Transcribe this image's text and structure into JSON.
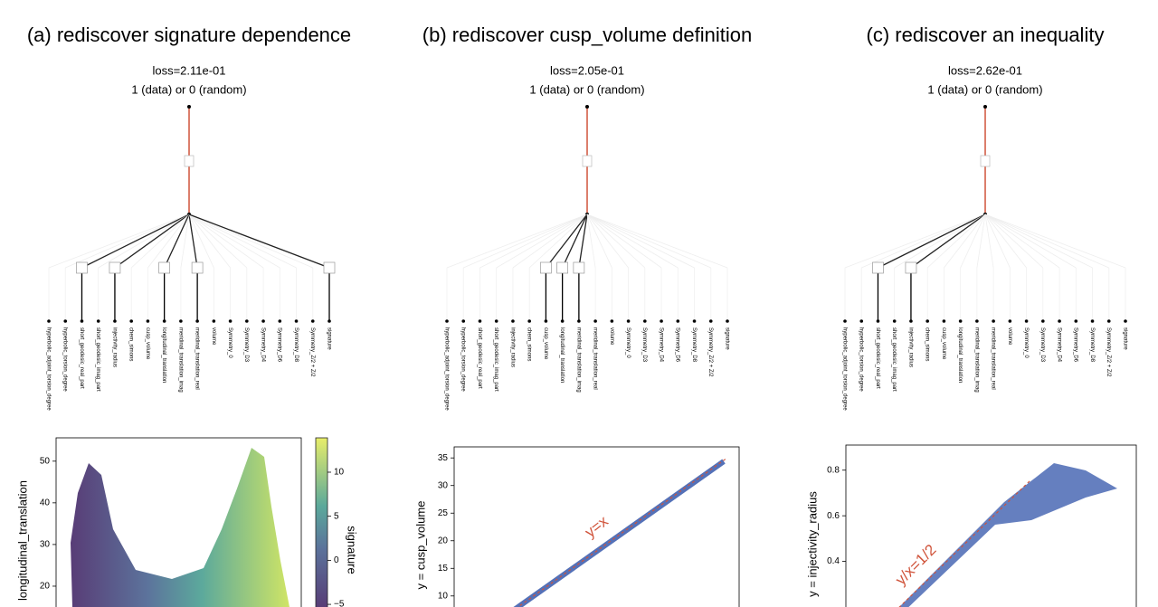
{
  "panels": [
    {
      "title": "(a) rediscover signature dependence",
      "loss": "loss=2.11e-01",
      "output": "1 (data) or 0 (random)",
      "inputs": [
        "hyperbolic_adjoint_torsion_degree",
        "hyperbolic_torsion_degree",
        "short_geodesic_real_part",
        "short_geodesic_imag_part",
        "injectivity_radius",
        "chern_simons",
        "cusp_volume",
        "longitudinal_translation",
        "meridinal_translation_imag",
        "meridinal_translation_real",
        "volume",
        "Symmetry_0",
        "Symmetry_D3",
        "Symmetry_D4",
        "Symmetry_D6",
        "Symmetry_D8",
        "Symmetry_Z/2 + Z/2",
        "signature"
      ],
      "active_inputs": [
        2,
        4,
        7,
        9,
        17
      ],
      "plot": {
        "ylabel": "longitudinal_translation",
        "ylim": [
          15,
          55.6
        ],
        "yticks": [
          20,
          30,
          40,
          50
        ],
        "colorbar": {
          "label": "signature",
          "lim": [
            -5.3,
            13.9
          ],
          "ticks": [
            {
              "value": -5,
              "label": "−5"
            },
            0,
            5,
            10
          ]
        }
      }
    },
    {
      "title": "(b) rediscover cusp_volume definition",
      "loss": "loss=2.05e-01",
      "output": "1 (data) or 0 (random)",
      "inputs": [
        "hyperbolic_adjoint_torsion_degree",
        "hyperbolic_torsion_degree",
        "short_geodesic_real_part",
        "short_geodesic_imag_part",
        "injectivity_radius",
        "chern_simons",
        "cusp_volume",
        "longitudinal_translation",
        "meridinal_translation_imag",
        "meridinal_translation_real",
        "volume",
        "Symmetry_0",
        "Symmetry_D3",
        "Symmetry_D4",
        "Symmetry_D6",
        "Symmetry_D8",
        "Symmetry_Z/2 + Z/2",
        "signature"
      ],
      "active_inputs": [
        6,
        7,
        8
      ],
      "plot": {
        "ylabel": "y = cusp_volume",
        "ylim": [
          8,
          37
        ],
        "yticks": [
          10,
          15,
          20,
          25,
          30,
          35
        ],
        "annotation": "y=x"
      }
    },
    {
      "title": "(c) rediscover an inequality",
      "loss": "loss=2.62e-01",
      "output": "1 (data) or 0 (random)",
      "inputs": [
        "hyperbolic_adjoint_torsion_degree",
        "hyperbolic_torsion_degree",
        "short_geodesic_real_part",
        "short_geodesic_imag_part",
        "injectivity_radius",
        "chern_simons",
        "cusp_volume",
        "longitudinal_translation",
        "meridinal_translation_imag",
        "meridinal_translation_real",
        "volume",
        "Symmetry_0",
        "Symmetry_D3",
        "Symmetry_D4",
        "Symmetry_D6",
        "Symmetry_D8",
        "Symmetry_Z/2 + Z/2",
        "signature"
      ],
      "active_inputs": [
        2,
        4
      ],
      "plot": {
        "ylabel": "y = injectivity_radius",
        "ylim": [
          0.2,
          0.91
        ],
        "yticks": [
          0.4,
          0.6,
          0.8
        ],
        "annotation": "y/x=1/2"
      }
    }
  ]
}
